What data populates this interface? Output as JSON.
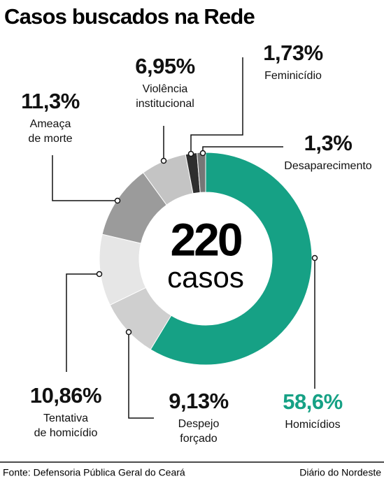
{
  "title": "Casos buscados na Rede",
  "chart_data": {
    "type": "donut",
    "categories": [
      "Homicídios",
      "Despejo\nforçado",
      "Tentativa\nde homicídio",
      "Ameaça\nde morte",
      "Violência\ninstitucional",
      "Feminicídio",
      "Desaparecimento"
    ],
    "values": [
      58.6,
      9.13,
      10.86,
      11.3,
      6.95,
      1.73,
      1.3
    ],
    "value_labels": [
      "58,6%",
      "9,13%",
      "10,86%",
      "11,3%",
      "6,95%",
      "1,73%",
      "1,3%"
    ],
    "colors": [
      "#16a185",
      "#cfcfcf",
      "#e6e6e6",
      "#9b9b9b",
      "#c4c4c4",
      "#2e2e2e",
      "#767676"
    ],
    "total": 220,
    "total_label": "casos"
  },
  "footer": {
    "source": "Fonte: Defensoria Pública Geral do Ceará",
    "publisher": "Diário do Nordeste"
  }
}
